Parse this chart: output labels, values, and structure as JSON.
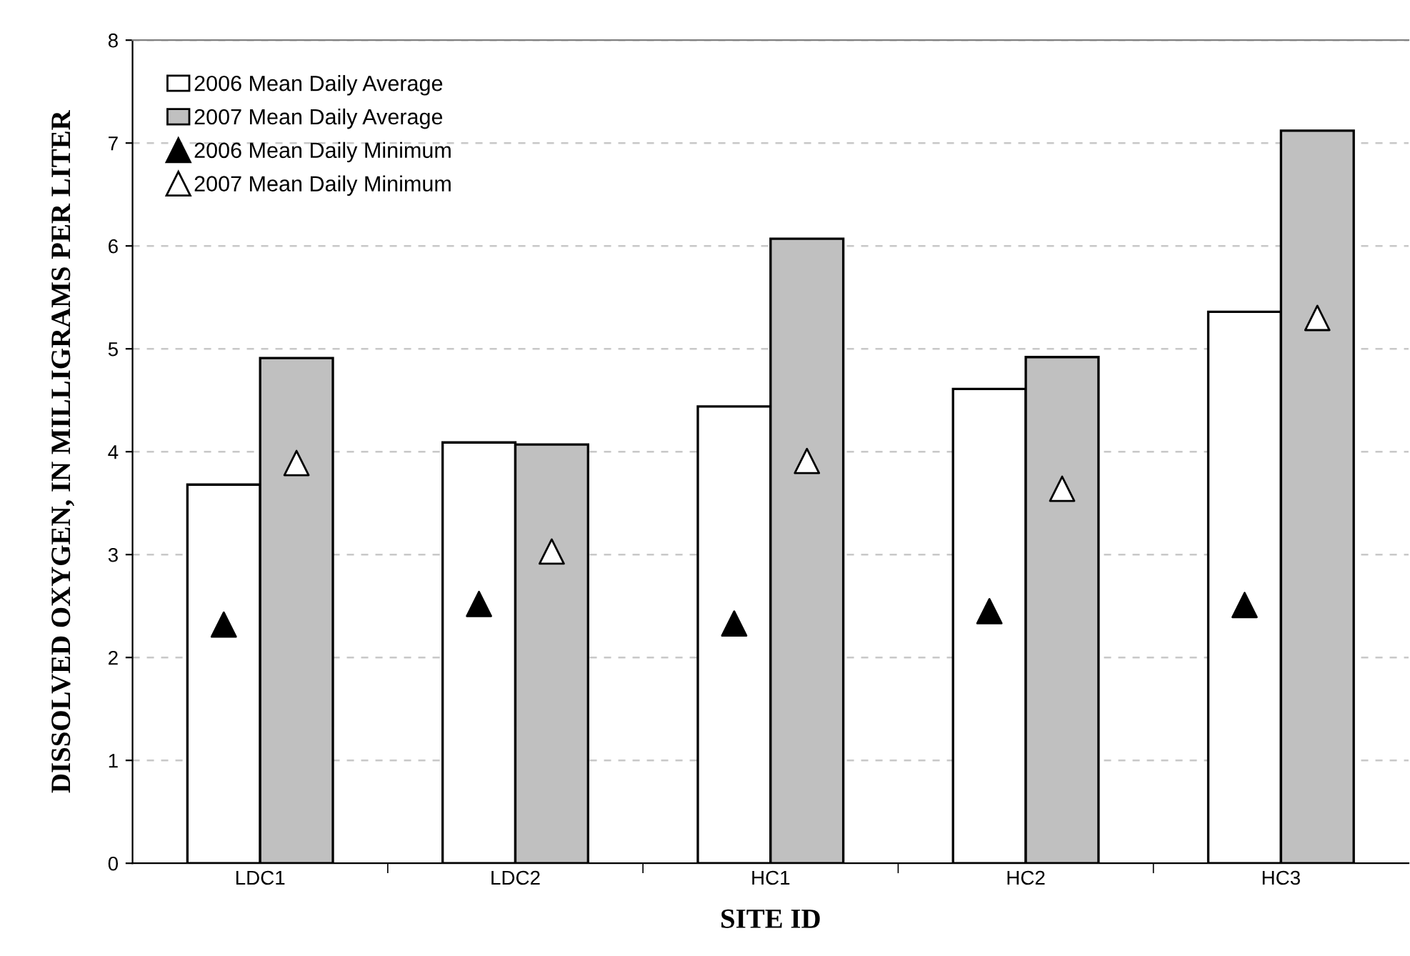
{
  "chart_data": {
    "type": "bar",
    "xlabel": "SITE ID",
    "ylabel": "DISSOLVED OXYGEN, IN MILLIGRAMS PER LITER",
    "categories": [
      "LDC1",
      "LDC2",
      "HC1",
      "HC2",
      "HC3"
    ],
    "series": [
      {
        "name": "2006 Mean Daily Average",
        "color": "#ffffff",
        "values": [
          3.68,
          4.09,
          4.44,
          4.61,
          5.36
        ]
      },
      {
        "name": "2007 Mean Daily Average",
        "color": "#c0c0c0",
        "values": [
          4.91,
          4.07,
          6.07,
          4.92,
          7.12
        ]
      },
      {
        "name": "2006 Mean Daily Minimum",
        "type": "scatter",
        "marker": "triangle",
        "color": "#000000",
        "values": [
          2.32,
          2.52,
          2.33,
          2.45,
          2.51
        ]
      },
      {
        "name": "2007 Mean Daily Minimum",
        "type": "scatter",
        "marker": "triangle",
        "color": "#ffffff",
        "values": [
          3.89,
          3.03,
          3.91,
          3.64,
          5.3
        ]
      }
    ],
    "ylim": [
      0,
      8
    ],
    "yticks": [
      0,
      1,
      2,
      3,
      4,
      5,
      6,
      7,
      8
    ],
    "grid": "y",
    "legend": "top left"
  }
}
